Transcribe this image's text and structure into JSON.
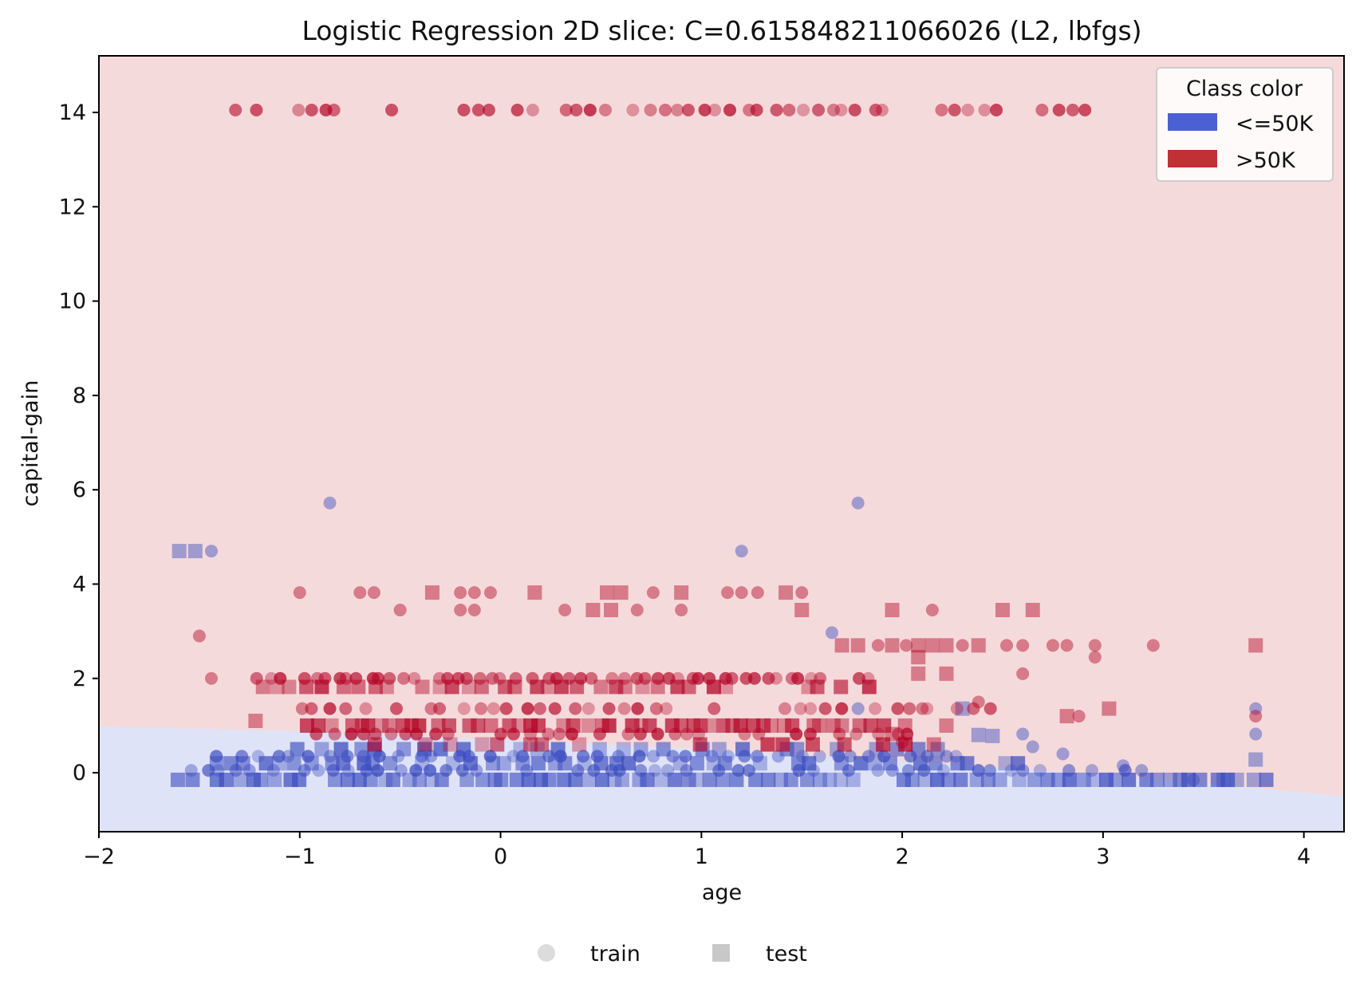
{
  "chart_data": {
    "type": "scatter",
    "title": "Logistic Regression 2D slice: C=0.615848211066026 (L2, lbfgs)",
    "xlabel": "age",
    "ylabel": "capital-gain",
    "xlim": [
      -2.0,
      4.2
    ],
    "ylim": [
      -1.25,
      15.2
    ],
    "xticks": [
      -2,
      -1,
      0,
      1,
      2,
      3,
      4
    ],
    "xtick_labels": [
      "−2",
      "−1",
      "0",
      "1",
      "2",
      "3",
      "4"
    ],
    "yticks": [
      0,
      2,
      4,
      6,
      8,
      10,
      12,
      14
    ],
    "ytick_labels": [
      "0",
      "2",
      "4",
      "6",
      "8",
      "10",
      "12",
      "14"
    ],
    "grid": false,
    "colors": {
      "low": "#3b4cc0",
      "high": "#b40426",
      "region_low": "#dfe3f7",
      "region_high": "#f5dadb",
      "legend_low": "#4a60d3",
      "legend_high": "#c03035",
      "marker_key": "#c8c8c8"
    },
    "decision_boundary": {
      "x": [
        -2.0,
        -1.5,
        -1.0,
        -0.5,
        0.0,
        0.5,
        1.0,
        1.5,
        2.0,
        2.5,
        3.0,
        3.5,
        4.0,
        4.2
      ],
      "y": [
        0.98,
        0.93,
        0.88,
        0.8,
        0.7,
        0.6,
        0.5,
        0.38,
        0.25,
        0.1,
        -0.05,
        -0.22,
        -0.42,
        -0.5
      ]
    },
    "class_legend": {
      "title": "Class color",
      "placement": "top-right",
      "entries": [
        {
          "label": "<=50K",
          "color_key": "legend_low"
        },
        {
          "label": ">50K",
          "color_key": "legend_high"
        }
      ]
    },
    "marker_legend": {
      "placement": "bottom-center",
      "entries": [
        {
          "label": "train",
          "marker": "circle"
        },
        {
          "label": "test",
          "marker": "square"
        }
      ]
    },
    "series": [
      {
        "name": "<=50K",
        "class": "low",
        "points": {
          "band_rows": [
            {
              "y": -0.15,
              "x_from": -1.6,
              "x_to": 3.8,
              "step": 0.06,
              "marker": "square"
            },
            {
              "y": 0.05,
              "x_from": -1.55,
              "x_to": 3.2,
              "step": 0.08,
              "marker": "circle"
            },
            {
              "y": 0.2,
              "x_from": -1.5,
              "x_to": 2.6,
              "step": 0.08,
              "marker": "square"
            },
            {
              "y": 0.35,
              "x_from": -1.4,
              "x_to": 2.4,
              "step": 0.09,
              "marker": "circle"
            },
            {
              "y": 0.5,
              "x_from": -1.0,
              "x_to": 2.2,
              "step": 0.1,
              "marker": "square"
            }
          ],
          "scatter": [
            {
              "x": -0.85,
              "y": 5.72,
              "marker": "circle"
            },
            {
              "x": 1.78,
              "y": 5.72,
              "marker": "circle"
            },
            {
              "x": -1.6,
              "y": 4.7,
              "marker": "square"
            },
            {
              "x": -1.52,
              "y": 4.7,
              "marker": "square"
            },
            {
              "x": -1.44,
              "y": 4.7,
              "marker": "circle"
            },
            {
              "x": 1.2,
              "y": 4.7,
              "marker": "circle"
            },
            {
              "x": 1.65,
              "y": 2.97,
              "marker": "circle"
            },
            {
              "x": 3.76,
              "y": 1.36,
              "marker": "circle"
            },
            {
              "x": 3.76,
              "y": 0.82,
              "marker": "circle"
            },
            {
              "x": 3.76,
              "y": 0.28,
              "marker": "square"
            },
            {
              "x": 2.6,
              "y": 0.82,
              "marker": "circle"
            },
            {
              "x": 2.65,
              "y": 0.55,
              "marker": "circle"
            },
            {
              "x": 3.1,
              "y": 0.15,
              "marker": "circle"
            },
            {
              "x": 2.38,
              "y": 0.8,
              "marker": "square"
            },
            {
              "x": 2.45,
              "y": 0.78,
              "marker": "square"
            },
            {
              "x": 2.3,
              "y": 1.36,
              "marker": "square"
            },
            {
              "x": 1.78,
              "y": 1.36,
              "marker": "circle"
            },
            {
              "x": 3.6,
              "y": -0.15,
              "marker": "square"
            },
            {
              "x": 3.45,
              "y": -0.15,
              "marker": "circle"
            },
            {
              "x": 2.8,
              "y": 0.4,
              "marker": "circle"
            }
          ]
        }
      },
      {
        "name": ">50K",
        "class": "high",
        "points": {
          "band_rows": [
            {
              "y": 14.05,
              "x_from": -1.3,
              "x_to": 2.9,
              "step": 0.07,
              "marker": "circle"
            },
            {
              "y": 2.0,
              "x_from": -1.2,
              "x_to": 1.85,
              "step": 0.055,
              "marker": "circle"
            },
            {
              "y": 1.82,
              "x_from": -1.2,
              "x_to": 1.85,
              "step": 0.08,
              "marker": "square"
            },
            {
              "y": 1.36,
              "x_from": -1.0,
              "x_to": 2.5,
              "step": 0.08,
              "marker": "circle"
            },
            {
              "y": 1.0,
              "x_from": -1.0,
              "x_to": 2.0,
              "step": 0.05,
              "marker": "square"
            },
            {
              "y": 0.82,
              "x_from": -0.9,
              "x_to": 2.1,
              "step": 0.07,
              "marker": "circle"
            },
            {
              "y": 0.6,
              "x_from": -0.6,
              "x_to": 2.2,
              "step": 0.12,
              "marker": "square"
            }
          ],
          "scatter": [
            {
              "x": -1.0,
              "y": 3.82,
              "marker": "circle"
            },
            {
              "x": -0.7,
              "y": 3.82,
              "marker": "circle"
            },
            {
              "x": -0.63,
              "y": 3.82,
              "marker": "circle"
            },
            {
              "x": -0.5,
              "y": 3.45,
              "marker": "circle"
            },
            {
              "x": -0.34,
              "y": 3.82,
              "marker": "square"
            },
            {
              "x": -0.2,
              "y": 3.82,
              "marker": "circle"
            },
            {
              "x": -0.13,
              "y": 3.82,
              "marker": "circle"
            },
            {
              "x": -0.05,
              "y": 3.82,
              "marker": "circle"
            },
            {
              "x": -0.2,
              "y": 3.45,
              "marker": "circle"
            },
            {
              "x": -0.13,
              "y": 3.45,
              "marker": "circle"
            },
            {
              "x": 0.17,
              "y": 3.82,
              "marker": "square"
            },
            {
              "x": 0.32,
              "y": 3.45,
              "marker": "circle"
            },
            {
              "x": 0.46,
              "y": 3.45,
              "marker": "square"
            },
            {
              "x": 0.53,
              "y": 3.82,
              "marker": "square"
            },
            {
              "x": 0.55,
              "y": 3.45,
              "marker": "square"
            },
            {
              "x": 0.6,
              "y": 3.82,
              "marker": "square"
            },
            {
              "x": 0.68,
              "y": 3.45,
              "marker": "circle"
            },
            {
              "x": 0.76,
              "y": 3.82,
              "marker": "circle"
            },
            {
              "x": 0.9,
              "y": 3.82,
              "marker": "square"
            },
            {
              "x": 0.9,
              "y": 3.45,
              "marker": "circle"
            },
            {
              "x": 1.13,
              "y": 3.82,
              "marker": "circle"
            },
            {
              "x": 1.2,
              "y": 3.82,
              "marker": "circle"
            },
            {
              "x": 1.28,
              "y": 3.82,
              "marker": "circle"
            },
            {
              "x": 1.42,
              "y": 3.82,
              "marker": "square"
            },
            {
              "x": 1.5,
              "y": 3.82,
              "marker": "circle"
            },
            {
              "x": 1.5,
              "y": 3.45,
              "marker": "square"
            },
            {
              "x": 1.95,
              "y": 3.45,
              "marker": "square"
            },
            {
              "x": 2.15,
              "y": 3.45,
              "marker": "circle"
            },
            {
              "x": 2.5,
              "y": 3.45,
              "marker": "square"
            },
            {
              "x": 2.65,
              "y": 3.45,
              "marker": "square"
            },
            {
              "x": -1.44,
              "y": 2.0,
              "marker": "circle"
            },
            {
              "x": 1.7,
              "y": 2.7,
              "marker": "square"
            },
            {
              "x": 1.78,
              "y": 2.7,
              "marker": "square"
            },
            {
              "x": 1.88,
              "y": 2.7,
              "marker": "circle"
            },
            {
              "x": 1.95,
              "y": 2.7,
              "marker": "square"
            },
            {
              "x": 2.02,
              "y": 2.7,
              "marker": "circle"
            },
            {
              "x": 2.08,
              "y": 2.7,
              "marker": "square"
            },
            {
              "x": 2.15,
              "y": 2.7,
              "marker": "square"
            },
            {
              "x": 2.22,
              "y": 2.7,
              "marker": "square"
            },
            {
              "x": 2.3,
              "y": 2.7,
              "marker": "circle"
            },
            {
              "x": 2.38,
              "y": 2.7,
              "marker": "square"
            },
            {
              "x": 2.52,
              "y": 2.7,
              "marker": "circle"
            },
            {
              "x": 2.6,
              "y": 2.7,
              "marker": "circle"
            },
            {
              "x": 2.75,
              "y": 2.7,
              "marker": "circle"
            },
            {
              "x": 2.82,
              "y": 2.7,
              "marker": "circle"
            },
            {
              "x": 2.96,
              "y": 2.7,
              "marker": "circle"
            },
            {
              "x": 3.25,
              "y": 2.7,
              "marker": "circle"
            },
            {
              "x": 3.76,
              "y": 2.7,
              "marker": "square"
            },
            {
              "x": 2.08,
              "y": 2.45,
              "marker": "square"
            },
            {
              "x": 2.96,
              "y": 2.45,
              "marker": "circle"
            },
            {
              "x": 2.08,
              "y": 2.1,
              "marker": "square"
            },
            {
              "x": 2.22,
              "y": 2.1,
              "marker": "square"
            },
            {
              "x": 2.6,
              "y": 2.1,
              "marker": "circle"
            },
            {
              "x": 2.38,
              "y": 1.5,
              "marker": "circle"
            },
            {
              "x": 2.82,
              "y": 1.2,
              "marker": "square"
            },
            {
              "x": 2.88,
              "y": 1.2,
              "marker": "circle"
            },
            {
              "x": 3.03,
              "y": 1.36,
              "marker": "square"
            },
            {
              "x": 3.76,
              "y": 1.2,
              "marker": "circle"
            },
            {
              "x": 2.0,
              "y": 0.65,
              "marker": "circle"
            },
            {
              "x": 1.95,
              "y": 0.82,
              "marker": "square"
            },
            {
              "x": 2.1,
              "y": 1.36,
              "marker": "circle"
            },
            {
              "x": 2.22,
              "y": 1.0,
              "marker": "square"
            },
            {
              "x": -1.22,
              "y": 1.1,
              "marker": "square"
            },
            {
              "x": -1.5,
              "y": 2.9,
              "marker": "circle"
            }
          ]
        }
      }
    ]
  }
}
